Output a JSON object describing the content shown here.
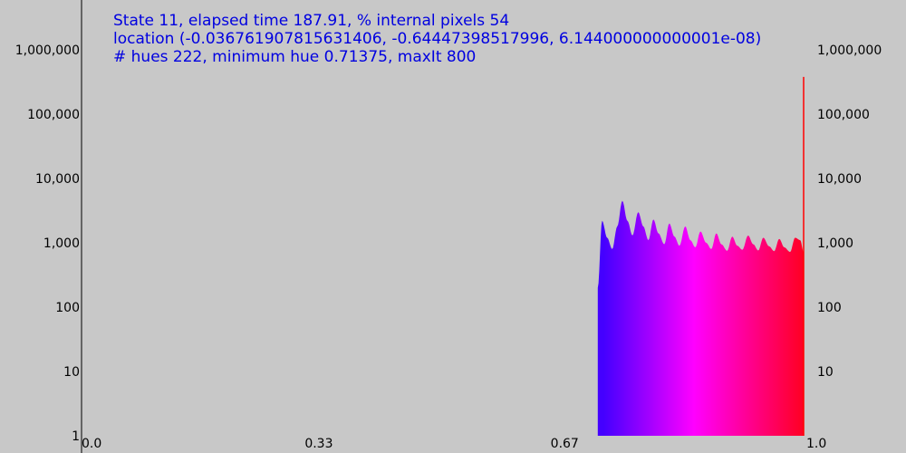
{
  "info": {
    "line1": "State 11, elapsed time 187.91, % internal pixels 54",
    "line2": "location (-0.036761907815631406, -0.64447398517996, 6.144000000000001e-08)",
    "line3": "# hues 222, minimum hue 0.71375, maxIt 800"
  },
  "colors": {
    "background": "#c8c8c8",
    "info_text": "#0000e0",
    "axis": "#000000",
    "hue_start": "#4400ff",
    "hue_mid": "#ff00ff",
    "hue_end": "#ff0020",
    "spike": "#ff0000"
  },
  "chart_data": {
    "type": "area",
    "title": "",
    "xlabel": "",
    "ylabel": "",
    "y_scale": "log",
    "ylim": [
      1,
      1000000
    ],
    "xlim": [
      0.0,
      1.0
    ],
    "y_tick_labels": [
      "1,000,000",
      "100,000",
      "10,000",
      "1,000",
      "100",
      "10",
      "1"
    ],
    "y_tick_values": [
      1000000,
      100000,
      10000,
      1000,
      100,
      10,
      1
    ],
    "y_tick_labels_right": [
      "1,000,000",
      "100,000",
      "10,000",
      "1,000",
      "100",
      "10"
    ],
    "y_tick_values_right": [
      1000000,
      100000,
      10000,
      1000,
      100,
      10
    ],
    "x_tick_labels": [
      "0.0",
      "0.33",
      "0.67",
      "1.0"
    ],
    "x_tick_values": [
      0.0,
      0.33,
      0.67,
      1.0
    ],
    "grid": false,
    "series": [
      {
        "x": [
          0.714,
          0.72,
          0.727,
          0.734,
          0.741,
          0.748,
          0.755,
          0.762,
          0.77,
          0.777,
          0.784,
          0.791,
          0.798,
          0.806,
          0.813,
          0.82,
          0.827,
          0.835,
          0.842,
          0.849,
          0.856,
          0.864,
          0.871,
          0.878,
          0.885,
          0.893,
          0.9,
          0.907,
          0.914,
          0.922,
          0.929,
          0.936,
          0.943,
          0.951,
          0.958,
          0.965,
          0.972,
          0.98,
          0.987,
          0.994,
          0.999
        ],
        "values": [
          200,
          2200,
          1200,
          800,
          1800,
          4500,
          2200,
          1300,
          3000,
          1800,
          1100,
          2300,
          1400,
          950,
          2000,
          1250,
          900,
          1800,
          1100,
          850,
          1500,
          1000,
          800,
          1400,
          950,
          750,
          1250,
          900,
          780,
          1300,
          950,
          760,
          1200,
          880,
          740,
          1150,
          850,
          720,
          1200,
          1100,
          700
        ],
        "spike": {
          "x": 1.0,
          "value": 380000
        }
      }
    ]
  }
}
